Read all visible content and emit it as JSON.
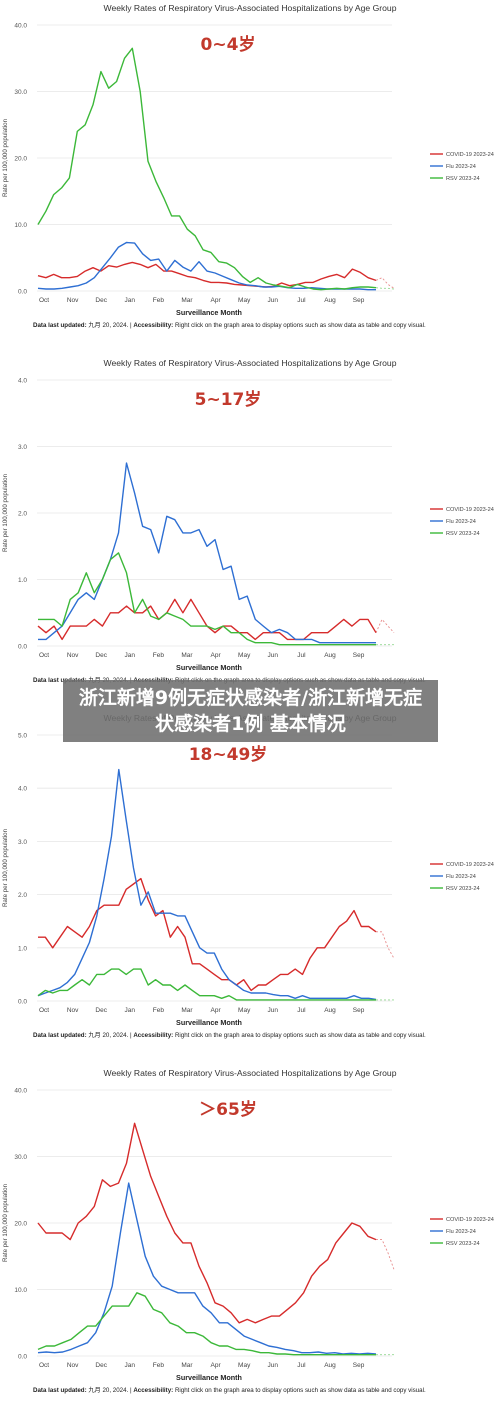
{
  "overlay_caption": "浙江新增9例无症状感染者/浙江新增无症状感染者1例 基本情况",
  "colors": {
    "covid": "#d62b2b",
    "flu": "#2e6fd3",
    "rsv": "#3cb839",
    "age_label": "#c2392c",
    "grid": "#e6e6e6"
  },
  "chart_data": [
    {
      "type": "line",
      "title": "Weekly Rates of Respiratory Virus-Associated Hospitalizations by Age Group",
      "age_label": "0~4岁",
      "xlabel": "Surveillance Month",
      "ylabel": "Rate per 100,000 population",
      "ylim": [
        0,
        40
      ],
      "yticks": [
        "0.0",
        "10.0",
        "20.0",
        "30.0",
        "40.0"
      ],
      "x_ticks": [
        "Oct",
        "Nov",
        "Dec",
        "Jan",
        "Feb",
        "Mar",
        "Apr",
        "May",
        "Jun",
        "Jul",
        "Aug",
        "Sep"
      ],
      "footer_label": "Data last updated:",
      "footer_date": "九月 20, 2024.",
      "footer_access_label": "Accessibility:",
      "footer_access": "Right click on the graph area to display options such as show data as table and copy visual.",
      "legend_position": "right",
      "series": [
        {
          "name": "COVID-19 2023-24",
          "values": [
            2.3,
            2.0,
            2.5,
            2.0,
            2.0,
            2.2,
            3.0,
            3.5,
            3.0,
            3.8,
            3.6,
            4.0,
            4.3,
            4.0,
            3.5,
            4.0,
            3.0,
            3.0,
            2.6,
            2.2,
            2.0,
            1.6,
            1.3,
            1.3,
            1.2,
            1.0,
            0.9,
            0.8,
            0.7,
            0.6,
            0.7,
            1.2,
            0.8,
            1.0,
            1.3,
            1.3,
            1.8,
            2.2,
            2.5,
            2.0,
            3.3,
            2.8,
            2.0,
            1.6
          ],
          "dashed_tail": [
            2.0,
            1.0,
            0.4
          ]
        },
        {
          "name": "Flu 2023-24",
          "values": [
            0.4,
            0.3,
            0.3,
            0.4,
            0.6,
            0.8,
            1.2,
            2.0,
            3.5,
            5.0,
            6.6,
            7.3,
            7.2,
            5.6,
            4.6,
            4.8,
            3.0,
            4.6,
            3.6,
            3.0,
            4.4,
            3.0,
            2.7,
            2.2,
            1.7,
            1.2,
            0.9,
            0.8,
            0.6,
            0.6,
            0.7,
            0.5,
            0.4,
            0.4,
            0.5,
            0.4,
            0.3,
            0.3,
            0.3,
            0.3,
            0.3,
            0.2,
            0.2
          ],
          "dashed_tail": []
        },
        {
          "name": "RSV 2023-24",
          "values": [
            10.0,
            12.0,
            14.5,
            15.5,
            17.0,
            24.0,
            25.0,
            28.0,
            33.0,
            30.5,
            31.5,
            35.0,
            36.5,
            30.0,
            19.5,
            16.5,
            14.0,
            11.3,
            11.3,
            9.3,
            8.3,
            6.2,
            5.8,
            4.4,
            4.2,
            3.5,
            2.2,
            1.3,
            2.0,
            1.2,
            0.9,
            0.7,
            0.5,
            1.0,
            0.6,
            0.3,
            0.2,
            0.3,
            0.4,
            0.3,
            0.5,
            0.6,
            0.6,
            0.5
          ],
          "dashed_tail": [
            0.4,
            0.4,
            0.3
          ]
        }
      ]
    },
    {
      "type": "line",
      "title": "Weekly Rates of Respiratory Virus-Associated Hospitalizations by Age Group",
      "age_label": "5~17岁",
      "xlabel": "Surveillance Month",
      "ylabel": "Rate per 100,000 population",
      "ylim": [
        0,
        4
      ],
      "yticks": [
        "0.0",
        "1.0",
        "2.0",
        "3.0",
        "4.0"
      ],
      "x_ticks": [
        "Oct",
        "Nov",
        "Dec",
        "Jan",
        "Feb",
        "Mar",
        "Apr",
        "May",
        "Jun",
        "Jul",
        "Aug",
        "Sep"
      ],
      "footer_label": "Data last updated:",
      "footer_date": "九月 20, 2024.",
      "footer_access_label": "Accessibility:",
      "footer_access": "Right click on the graph area to display options such as show data as table and copy visual.",
      "legend_position": "right",
      "series": [
        {
          "name": "COVID-19 2023-24",
          "values": [
            0.3,
            0.2,
            0.3,
            0.1,
            0.3,
            0.3,
            0.3,
            0.4,
            0.3,
            0.5,
            0.5,
            0.6,
            0.5,
            0.5,
            0.6,
            0.4,
            0.5,
            0.7,
            0.5,
            0.7,
            0.5,
            0.3,
            0.2,
            0.3,
            0.3,
            0.2,
            0.2,
            0.1,
            0.2,
            0.2,
            0.2,
            0.1,
            0.1,
            0.1,
            0.2,
            0.2,
            0.2,
            0.3,
            0.4,
            0.3,
            0.4,
            0.4,
            0.2
          ],
          "dashed_tail": [
            0.4,
            0.3,
            0.2
          ]
        },
        {
          "name": "Flu 2023-24",
          "values": [
            0.1,
            0.1,
            0.2,
            0.3,
            0.5,
            0.7,
            0.8,
            0.7,
            1.0,
            1.3,
            1.7,
            2.75,
            2.3,
            1.8,
            1.75,
            1.4,
            1.95,
            1.9,
            1.7,
            1.7,
            1.75,
            1.5,
            1.6,
            1.15,
            1.2,
            0.7,
            0.75,
            0.4,
            0.3,
            0.2,
            0.25,
            0.2,
            0.1,
            0.1,
            0.1,
            0.05,
            0.05,
            0.05,
            0.05,
            0.05,
            0.05,
            0.05,
            0.05
          ],
          "dashed_tail": []
        },
        {
          "name": "RSV 2023-24",
          "values": [
            0.4,
            0.4,
            0.4,
            0.3,
            0.7,
            0.8,
            1.1,
            0.8,
            1.0,
            1.3,
            1.4,
            1.1,
            0.5,
            0.7,
            0.45,
            0.4,
            0.5,
            0.45,
            0.4,
            0.3,
            0.3,
            0.3,
            0.25,
            0.3,
            0.2,
            0.2,
            0.1,
            0.05,
            0.05,
            0.05,
            0.02,
            0.02,
            0.02,
            0.02,
            0.02,
            0.02,
            0.02,
            0.02,
            0.02,
            0.02,
            0.02,
            0.02,
            0.02
          ],
          "dashed_tail": [
            0.02,
            0.02,
            0.02
          ]
        }
      ]
    },
    {
      "type": "line",
      "title": "Weekly Rates of Respiratory Virus-Associated Hospitalizations by Age Group",
      "age_label": "18~49岁",
      "xlabel": "Surveillance Month",
      "ylabel": "Rate per 100,000 population",
      "ylim": [
        0,
        5
      ],
      "yticks": [
        "0.0",
        "1.0",
        "2.0",
        "3.0",
        "4.0",
        "5.0"
      ],
      "x_ticks": [
        "Oct",
        "Nov",
        "Dec",
        "Jan",
        "Feb",
        "Mar",
        "Apr",
        "May",
        "Jun",
        "Jul",
        "Aug",
        "Sep"
      ],
      "footer_label": "Data last updated:",
      "footer_date": "九月 20, 2024.",
      "footer_access_label": "Accessibility:",
      "footer_access": "Right click on the graph area to display options such as show data as table and copy visual.",
      "legend_position": "right",
      "series": [
        {
          "name": "COVID-19 2023-24",
          "values": [
            1.2,
            1.2,
            1.0,
            1.2,
            1.4,
            1.3,
            1.2,
            1.4,
            1.7,
            1.8,
            1.8,
            1.8,
            2.1,
            2.2,
            2.3,
            1.9,
            1.6,
            1.7,
            1.2,
            1.4,
            1.2,
            0.7,
            0.7,
            0.6,
            0.5,
            0.4,
            0.4,
            0.3,
            0.4,
            0.2,
            0.3,
            0.3,
            0.4,
            0.5,
            0.5,
            0.6,
            0.5,
            0.8,
            1.0,
            1.0,
            1.2,
            1.4,
            1.5,
            1.7,
            1.4,
            1.4,
            1.3
          ],
          "dashed_tail": [
            1.3,
            1.0,
            0.8
          ]
        },
        {
          "name": "Flu 2023-24",
          "values": [
            0.1,
            0.15,
            0.2,
            0.25,
            0.35,
            0.5,
            0.8,
            1.1,
            1.6,
            2.3,
            3.1,
            4.35,
            3.4,
            2.5,
            1.8,
            2.05,
            1.65,
            1.65,
            1.65,
            1.6,
            1.6,
            1.3,
            1.0,
            0.9,
            0.9,
            0.6,
            0.4,
            0.3,
            0.2,
            0.15,
            0.15,
            0.15,
            0.12,
            0.1,
            0.1,
            0.05,
            0.1,
            0.05,
            0.05,
            0.05,
            0.05,
            0.05,
            0.05,
            0.1,
            0.05,
            0.05,
            0.03
          ],
          "dashed_tail": []
        },
        {
          "name": "RSV 2023-24",
          "values": [
            0.1,
            0.2,
            0.15,
            0.2,
            0.2,
            0.3,
            0.4,
            0.3,
            0.5,
            0.5,
            0.6,
            0.6,
            0.5,
            0.6,
            0.6,
            0.3,
            0.4,
            0.3,
            0.3,
            0.2,
            0.3,
            0.2,
            0.1,
            0.1,
            0.1,
            0.05,
            0.1,
            0.02,
            0.02,
            0.02,
            0.02,
            0.02,
            0.02,
            0.02,
            0.02,
            0.02,
            0.02,
            0.02,
            0.02,
            0.02,
            0.02,
            0.02,
            0.02,
            0.02,
            0.02,
            0.02,
            0.02
          ],
          "dashed_tail": [
            0.02,
            0.02,
            0.02
          ]
        }
      ]
    },
    {
      "type": "line",
      "title": "Weekly Rates of Respiratory Virus-Associated Hospitalizations by Age Group",
      "age_label": "＞65岁",
      "xlabel": "Surveillance Month",
      "ylabel": "Rate per 100,000 population",
      "ylim": [
        0,
        40
      ],
      "yticks": [
        "0.0",
        "10.0",
        "20.0",
        "30.0",
        "40.0"
      ],
      "x_ticks": [
        "Oct",
        "Nov",
        "Dec",
        "Jan",
        "Feb",
        "Mar",
        "Apr",
        "May",
        "Jun",
        "Jul",
        "Aug",
        "Sep"
      ],
      "footer_label": "Data last updated:",
      "footer_date": "九月 20, 2024.",
      "footer_access_label": "Accessibility:",
      "footer_access": "Right click on the graph area to display options such as show data as table and copy visual.",
      "legend_position": "right",
      "series": [
        {
          "name": "COVID-19 2023-24",
          "values": [
            20.0,
            18.5,
            18.5,
            18.5,
            17.5,
            20.0,
            21.0,
            22.5,
            26.5,
            25.5,
            26.0,
            29.0,
            35.0,
            31.0,
            27.0,
            24.0,
            21.0,
            18.5,
            17.0,
            17.0,
            13.5,
            11.0,
            8.0,
            7.5,
            6.5,
            5.0,
            5.5,
            5.0,
            5.5,
            6.0,
            6.0,
            7.0,
            8.0,
            9.5,
            12.0,
            13.5,
            14.5,
            17.0,
            18.5,
            20.0,
            19.5,
            18.0,
            17.5
          ],
          "dashed_tail": [
            17.5,
            15.5,
            13.0
          ]
        },
        {
          "name": "Flu 2023-24",
          "values": [
            0.5,
            0.6,
            0.5,
            0.6,
            1.0,
            1.5,
            2.0,
            3.5,
            6.5,
            10.5,
            18.5,
            26.0,
            20.5,
            15.0,
            12.0,
            10.5,
            10.0,
            9.5,
            9.5,
            9.5,
            7.5,
            6.5,
            5.0,
            5.0,
            4.0,
            3.0,
            2.5,
            2.0,
            1.5,
            1.3,
            1.0,
            0.8,
            0.5,
            0.5,
            0.6,
            0.4,
            0.5,
            0.3,
            0.4,
            0.3,
            0.4,
            0.3
          ],
          "dashed_tail": []
        },
        {
          "name": "RSV 2023-24",
          "values": [
            1.0,
            1.5,
            1.5,
            2.0,
            2.5,
            3.5,
            4.5,
            4.5,
            6.0,
            7.5,
            7.5,
            7.5,
            9.5,
            9.0,
            7.0,
            6.5,
            5.0,
            4.5,
            3.5,
            3.5,
            3.0,
            2.0,
            1.5,
            1.5,
            1.0,
            1.0,
            0.8,
            0.5,
            0.5,
            0.3,
            0.3,
            0.2,
            0.2,
            0.2,
            0.2,
            0.2,
            0.2,
            0.2,
            0.2,
            0.2,
            0.2,
            0.2
          ],
          "dashed_tail": [
            0.2,
            0.2,
            0.2
          ]
        }
      ]
    }
  ]
}
